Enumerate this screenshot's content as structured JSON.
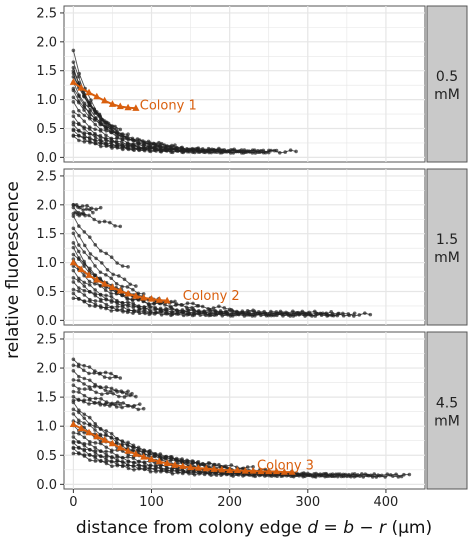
{
  "chart_data": {
    "type": "line",
    "ylabel": "relative fluorescence",
    "xlabel": "distance from colony edge d = b - r (µm)",
    "xlabel_parts": {
      "text": "distance from colony edge ",
      "d": "d",
      "eq": " = ",
      "b": "b",
      "minus": " − ",
      "r": "r",
      "unit": " (µm)"
    },
    "xlim": [
      -12,
      450
    ],
    "ylim": [
      -0.08,
      2.62
    ],
    "x_ticks": [
      0,
      100,
      200,
      300,
      400
    ],
    "x_tick_labels": [
      "0",
      "100",
      "200",
      "300",
      "400"
    ],
    "y_ticks": [
      0.0,
      0.5,
      1.0,
      1.5,
      2.0,
      2.5
    ],
    "y_tick_labels": [
      "0.0",
      "0.5",
      "1.0",
      "1.5",
      "2.0",
      "2.5"
    ],
    "grid": true,
    "highlight_color": "#d95f0e",
    "background_color": "#ffffff",
    "grid_color": "#e6e6e6",
    "strip_color": "#c9c9c9",
    "point_color": "#222222",
    "panels": [
      {
        "strip_label": [
          "0.5",
          "mM"
        ],
        "colony_label": "Colony 1",
        "colony_label_pos": {
          "x": 85,
          "y": 0.9
        },
        "highlight": {
          "x": [
            0,
            10,
            20,
            30,
            40,
            50,
            60,
            70,
            80
          ],
          "y": [
            1.3,
            1.2,
            1.12,
            1.05,
            0.98,
            0.92,
            0.88,
            0.86,
            0.85
          ]
        },
        "curves": [
          {
            "y0": 1.85,
            "A": 1.6,
            "k": 28,
            "xmax": 45
          },
          {
            "y0": 1.65,
            "A": 1.4,
            "k": 30,
            "xmax": 40
          },
          {
            "y0": 1.55,
            "A": 1.3,
            "k": 32,
            "xmax": 50
          },
          {
            "y0": 1.5,
            "A": 1.3,
            "k": 35,
            "xmax": 55
          },
          {
            "y0": 1.45,
            "A": 1.25,
            "k": 36,
            "xmax": 70
          },
          {
            "y0": 1.4,
            "A": 1.2,
            "k": 40,
            "xmax": 60
          },
          {
            "y0": 1.3,
            "A": 1.15,
            "k": 38,
            "xmax": 65
          },
          {
            "y0": 1.2,
            "A": 1.05,
            "k": 40,
            "xmax": 120
          },
          {
            "y0": 1.15,
            "A": 1.0,
            "k": 42,
            "xmax": 110
          },
          {
            "y0": 1.05,
            "A": 0.9,
            "k": 45,
            "xmax": 130
          },
          {
            "y0": 0.95,
            "A": 0.82,
            "k": 45,
            "xmax": 140
          },
          {
            "y0": 0.8,
            "A": 0.68,
            "k": 45,
            "xmax": 160
          },
          {
            "y0": 0.7,
            "A": 0.58,
            "k": 40,
            "xmax": 180
          },
          {
            "y0": 0.62,
            "A": 0.5,
            "k": 45,
            "xmax": 200
          },
          {
            "y0": 0.55,
            "A": 0.44,
            "k": 45,
            "xmax": 220
          },
          {
            "y0": 0.5,
            "A": 0.4,
            "k": 40,
            "xmax": 250
          },
          {
            "y0": 0.45,
            "A": 0.35,
            "k": 45,
            "xmax": 285
          },
          {
            "y0": 0.4,
            "A": 0.3,
            "k": 40,
            "xmax": 240
          },
          {
            "y0": 0.35,
            "A": 0.25,
            "k": 45,
            "xmax": 260
          }
        ]
      },
      {
        "strip_label": [
          "1.5",
          "mM"
        ],
        "colony_label": "Colony 2",
        "colony_label_pos": {
          "x": 140,
          "y": 0.42
        },
        "highlight": {
          "x": [
            0,
            10,
            20,
            30,
            40,
            50,
            60,
            70,
            80,
            90,
            100,
            110,
            120
          ],
          "y": [
            1.0,
            0.88,
            0.78,
            0.7,
            0.63,
            0.57,
            0.51,
            0.46,
            0.42,
            0.39,
            0.37,
            0.35,
            0.34
          ]
        },
        "curves": [
          {
            "y0": 2.0,
            "A": 0.15,
            "k": 60,
            "xmax": 35
          },
          {
            "y0": 2.0,
            "A": 0.3,
            "k": 50,
            "xmax": 25
          },
          {
            "y0": 1.95,
            "A": 0.4,
            "k": 40,
            "xmax": 60
          },
          {
            "y0": 1.85,
            "A": 0.1,
            "k": 60,
            "xmax": 15
          },
          {
            "y0": 1.8,
            "A": 1.3,
            "k": 60,
            "xmax": 70
          },
          {
            "y0": 1.6,
            "A": 1.3,
            "k": 55,
            "xmax": 80
          },
          {
            "y0": 1.5,
            "A": 1.2,
            "k": 45,
            "xmax": 90
          },
          {
            "y0": 1.35,
            "A": 1.15,
            "k": 40,
            "xmax": 110
          },
          {
            "y0": 1.25,
            "A": 1.0,
            "k": 45,
            "xmax": 120
          },
          {
            "y0": 1.15,
            "A": 0.9,
            "k": 50,
            "xmax": 130
          },
          {
            "y0": 1.05,
            "A": 0.8,
            "k": 45,
            "xmax": 160
          },
          {
            "y0": 0.95,
            "A": 0.75,
            "k": 50,
            "xmax": 200
          },
          {
            "y0": 0.85,
            "A": 0.7,
            "k": 45,
            "xmax": 230
          },
          {
            "y0": 0.75,
            "A": 0.62,
            "k": 45,
            "xmax": 300
          },
          {
            "y0": 0.65,
            "A": 0.52,
            "k": 50,
            "xmax": 330
          },
          {
            "y0": 0.55,
            "A": 0.45,
            "k": 45,
            "xmax": 380
          },
          {
            "y0": 0.45,
            "A": 0.35,
            "k": 40,
            "xmax": 360
          },
          {
            "y0": 0.4,
            "A": 0.3,
            "k": 40,
            "xmax": 340
          }
        ]
      },
      {
        "strip_label": [
          "4.5",
          "mM"
        ],
        "colony_label": "Colony 3",
        "colony_label_pos": {
          "x": 235,
          "y": 0.32
        },
        "highlight": {
          "x": [
            0,
            10,
            20,
            30,
            40,
            50,
            60,
            70,
            80,
            90,
            100,
            110,
            120,
            130,
            140,
            150,
            160,
            170,
            180,
            190,
            200,
            210,
            220,
            230,
            240,
            250,
            260,
            270,
            280
          ],
          "y": [
            1.03,
            0.96,
            0.89,
            0.82,
            0.76,
            0.7,
            0.63,
            0.57,
            0.52,
            0.47,
            0.43,
            0.39,
            0.36,
            0.33,
            0.31,
            0.29,
            0.28,
            0.27,
            0.26,
            0.25,
            0.24,
            0.24,
            0.23,
            0.23,
            0.22,
            0.22,
            0.22,
            0.21,
            0.21
          ]
        },
        "curves": [
          {
            "y0": 2.15,
            "A": 0.35,
            "k": 35,
            "xmax": 55
          },
          {
            "y0": 2.05,
            "A": 0.3,
            "k": 40,
            "xmax": 60
          },
          {
            "y0": 1.95,
            "A": 0.45,
            "k": 40,
            "xmax": 70
          },
          {
            "y0": 1.8,
            "A": 0.3,
            "k": 50,
            "xmax": 75
          },
          {
            "y0": 1.7,
            "A": 0.25,
            "k": 50,
            "xmax": 80
          },
          {
            "y0": 1.6,
            "A": 0.3,
            "k": 50,
            "xmax": 85
          },
          {
            "y0": 1.5,
            "A": 0.25,
            "k": 60,
            "xmax": 90
          },
          {
            "y0": 1.45,
            "A": 0.15,
            "k": 60,
            "xmax": 60
          },
          {
            "y0": 1.4,
            "A": 1.2,
            "k": 80,
            "xmax": 140
          },
          {
            "y0": 1.3,
            "A": 1.1,
            "k": 85,
            "xmax": 160
          },
          {
            "y0": 1.2,
            "A": 1.0,
            "k": 90,
            "xmax": 180
          },
          {
            "y0": 1.1,
            "A": 0.9,
            "k": 90,
            "xmax": 200
          },
          {
            "y0": 1.0,
            "A": 0.8,
            "k": 100,
            "xmax": 230
          },
          {
            "y0": 0.9,
            "A": 0.72,
            "k": 95,
            "xmax": 260
          },
          {
            "y0": 0.8,
            "A": 0.64,
            "k": 90,
            "xmax": 300
          },
          {
            "y0": 0.75,
            "A": 0.6,
            "k": 85,
            "xmax": 330
          },
          {
            "y0": 0.7,
            "A": 0.55,
            "k": 80,
            "xmax": 360
          },
          {
            "y0": 0.65,
            "A": 0.5,
            "k": 75,
            "xmax": 390
          },
          {
            "y0": 0.6,
            "A": 0.45,
            "k": 70,
            "xmax": 420
          },
          {
            "y0": 0.55,
            "A": 0.4,
            "k": 65,
            "xmax": 430
          }
        ]
      }
    ]
  }
}
